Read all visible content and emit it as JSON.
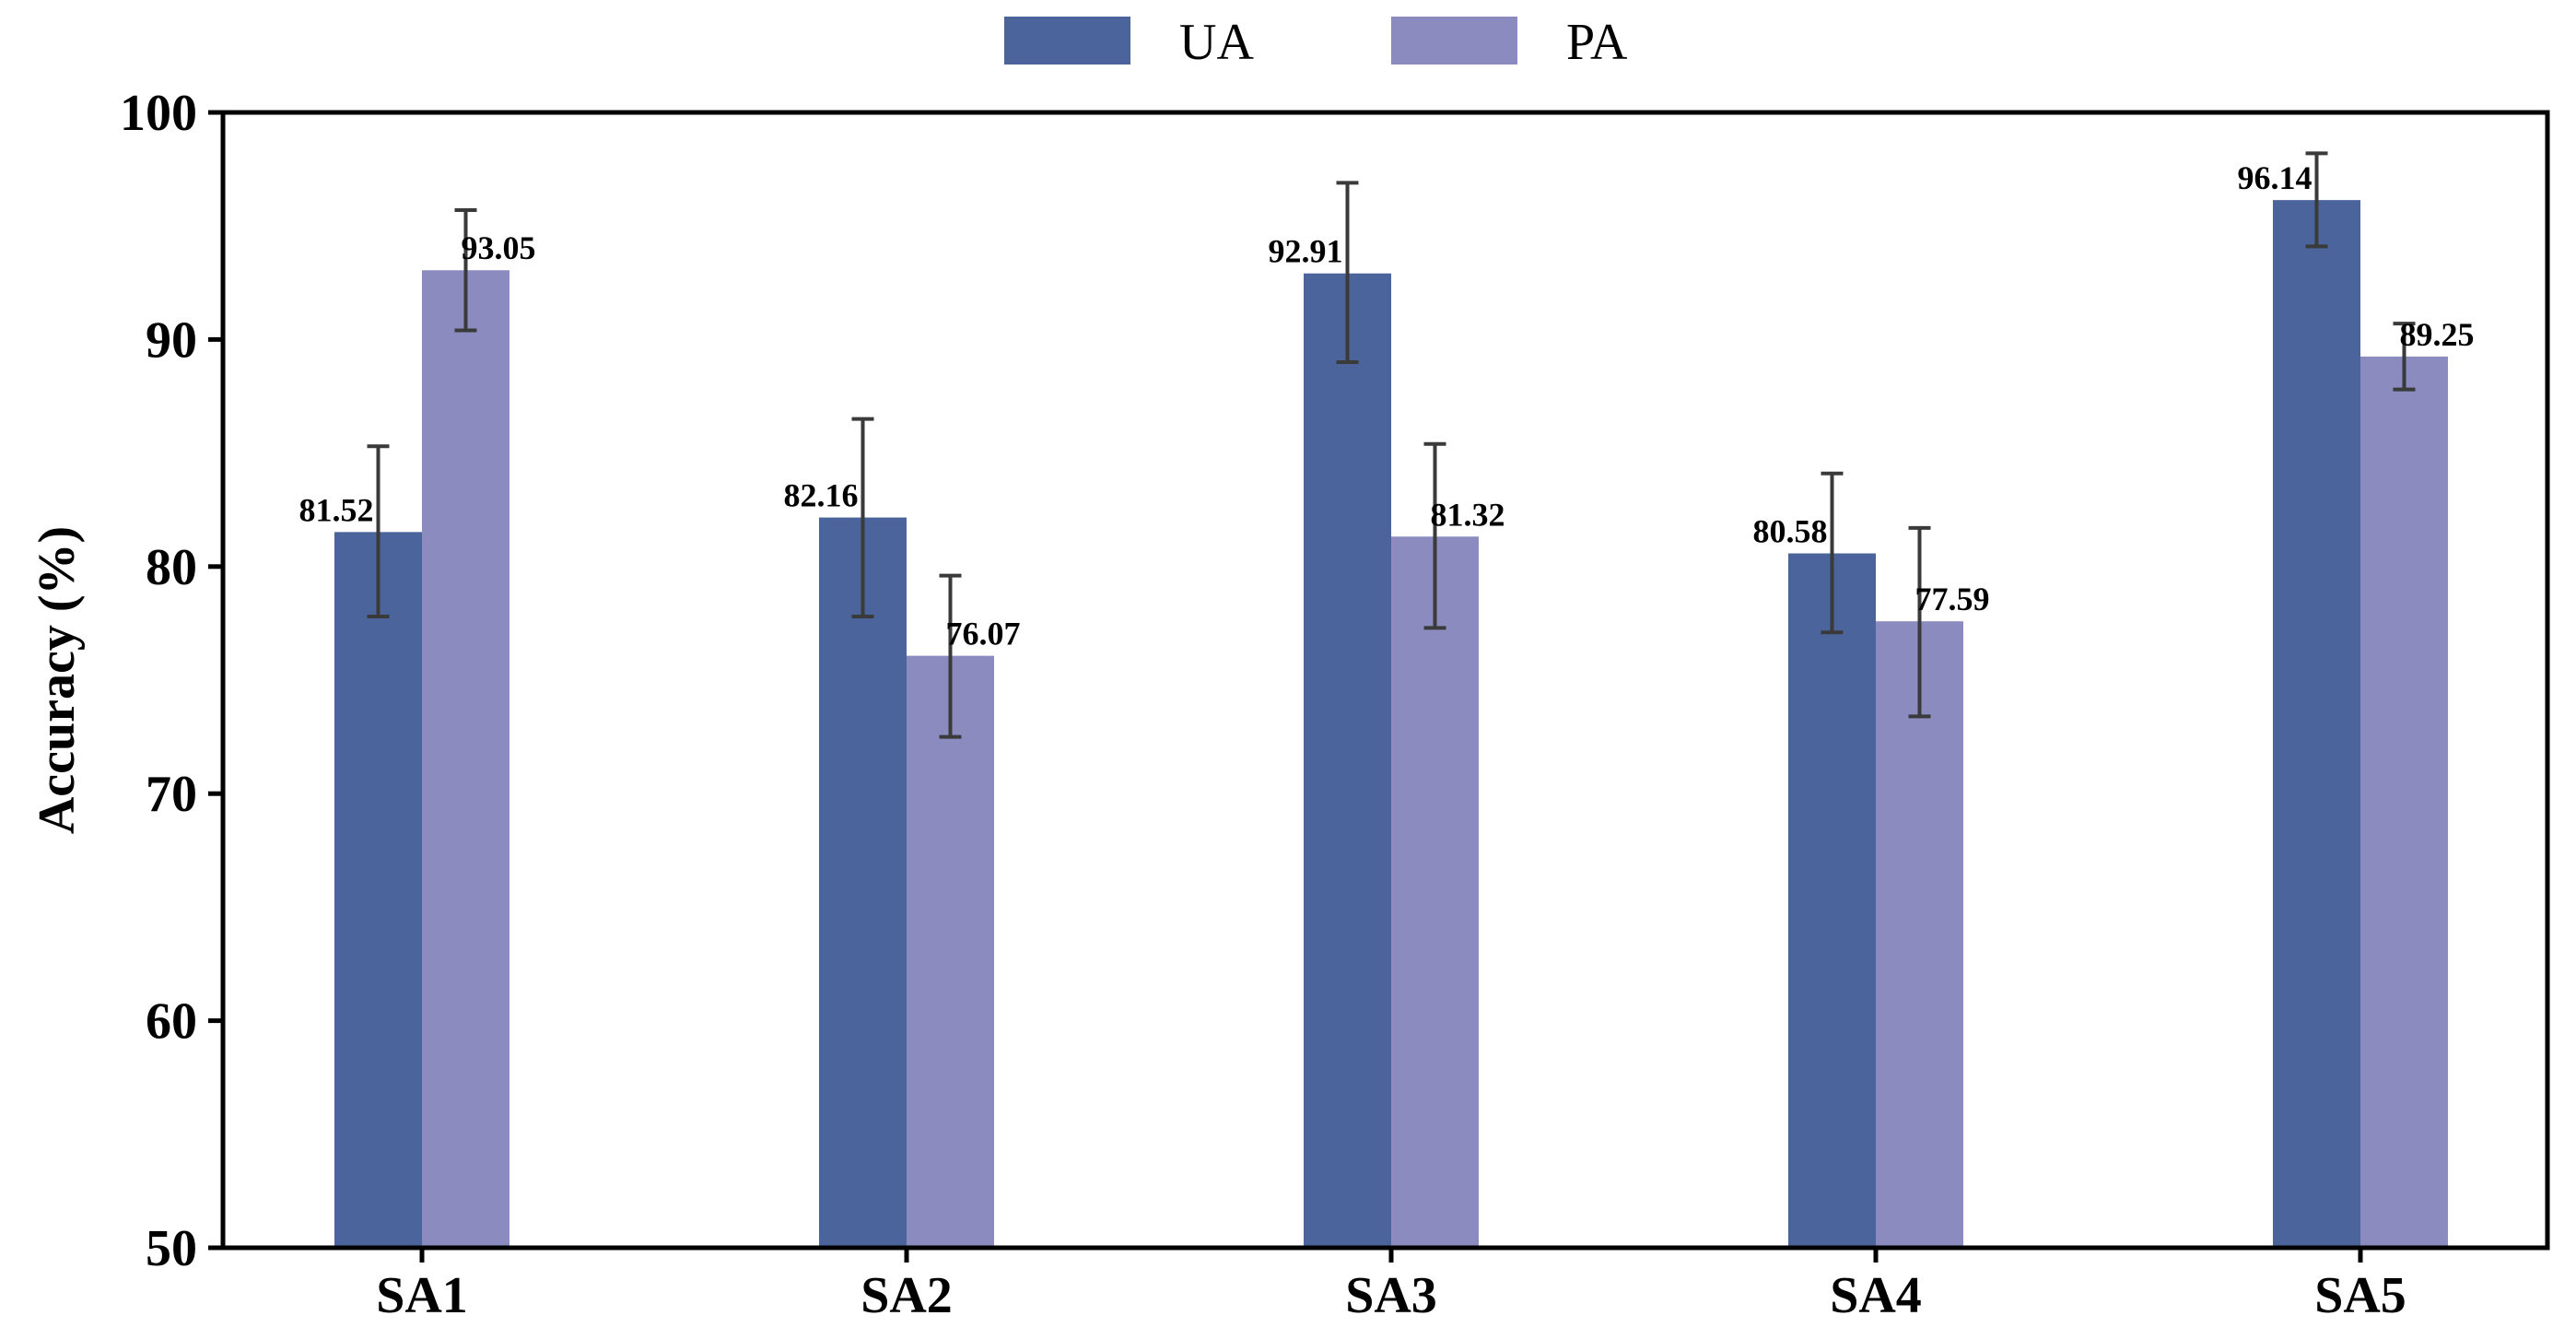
{
  "chart_data": {
    "type": "bar",
    "title": "",
    "xlabel": "",
    "ylabel": "Accuracy (%)",
    "ylim": [
      50,
      100
    ],
    "yticks": [
      50,
      60,
      70,
      80,
      90,
      100
    ],
    "grid": false,
    "legend_position": "top-center",
    "categories": [
      "SA1",
      "SA2",
      "SA3",
      "SA4",
      "SA5"
    ],
    "series": [
      {
        "name": "UA",
        "color": "#4B649C",
        "values": [
          81.52,
          82.16,
          92.91,
          80.58,
          96.14
        ],
        "error_low": [
          77.8,
          77.8,
          89.0,
          77.1,
          94.1
        ],
        "error_high": [
          85.3,
          86.5,
          96.9,
          84.1,
          98.2
        ],
        "labels": [
          "81.52",
          "82.16",
          "92.91",
          "80.58",
          "96.14"
        ]
      },
      {
        "name": "PA",
        "color": "#8B8BC0",
        "values": [
          93.05,
          76.07,
          81.32,
          77.59,
          89.25
        ],
        "error_low": [
          90.4,
          72.5,
          77.3,
          73.4,
          87.8
        ],
        "error_high": [
          95.7,
          79.6,
          85.4,
          81.7,
          90.7
        ],
        "labels": [
          "93.05",
          "76.07",
          "81.32",
          "77.59",
          "89.25"
        ]
      }
    ],
    "error_bar_color": "#3a3a3a"
  }
}
